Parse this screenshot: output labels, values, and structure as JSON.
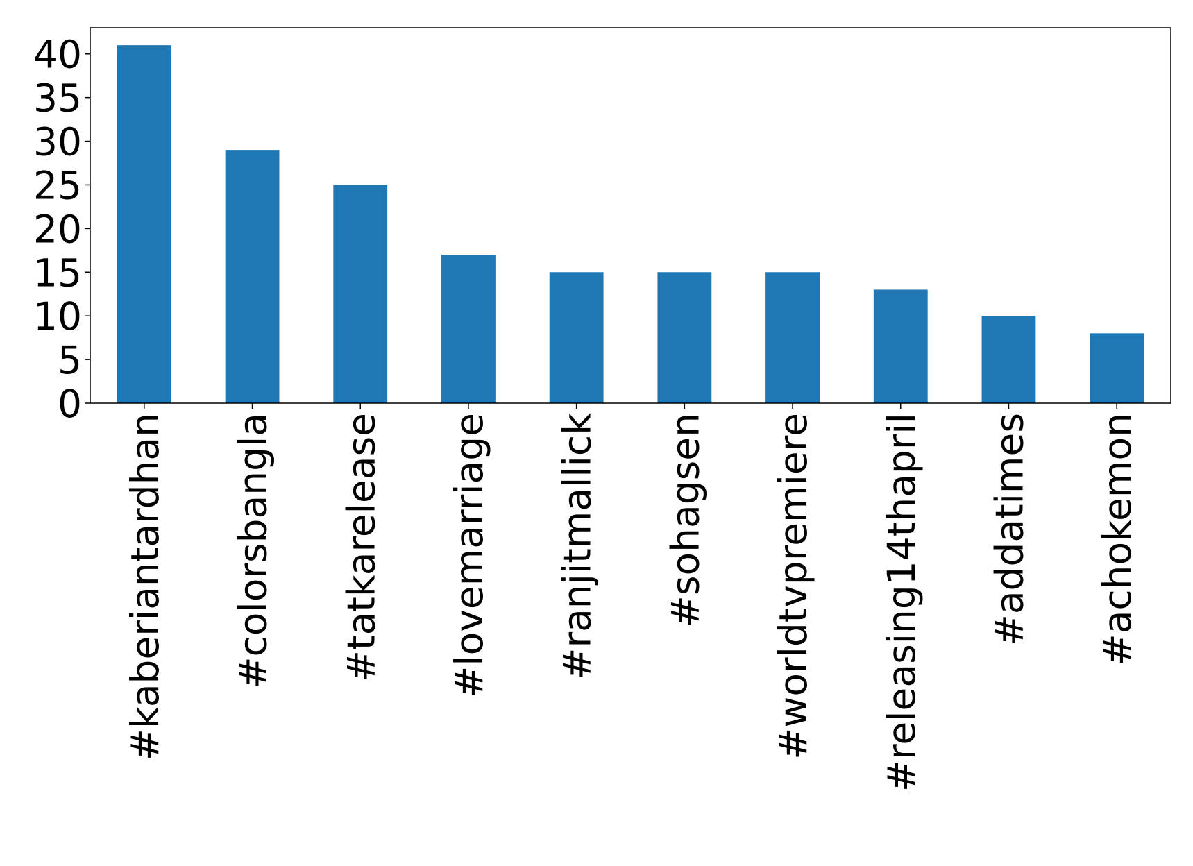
{
  "chart_data": {
    "type": "bar",
    "categories": [
      "#kaberiantardhan",
      "#colorsbangla",
      "#tatkarelease",
      "#lovemarriage",
      "#ranjitmallick",
      "#sohagsen",
      "#worldtvpremiere",
      "#releasing14thapril",
      "#addatimes",
      "#achokemon"
    ],
    "values": [
      41,
      29,
      25,
      17,
      15,
      15,
      15,
      13,
      10,
      8
    ],
    "color": "#1f77b4",
    "ylim": [
      0,
      43
    ],
    "yticks": [
      0,
      5,
      10,
      15,
      20,
      25,
      30,
      35,
      40
    ],
    "grid": false
  }
}
